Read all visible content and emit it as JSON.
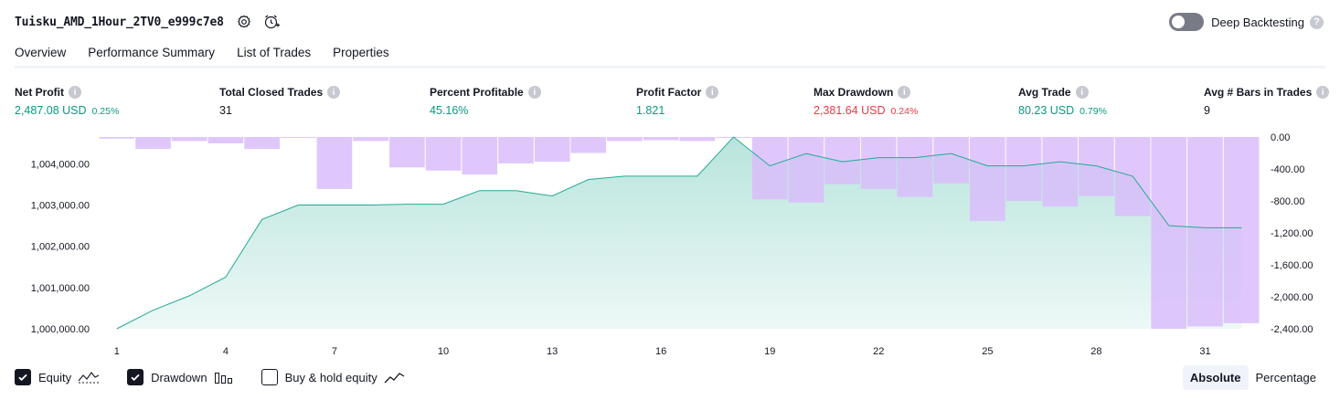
{
  "header": {
    "title": "Tuisku_AMD_1Hour_2TV0_e999c7e8",
    "deep_backtesting_label": "Deep Backtesting",
    "deep_backtesting_on": false
  },
  "tabs": [
    {
      "label": "Overview",
      "active": true
    },
    {
      "label": "Performance Summary",
      "active": false
    },
    {
      "label": "List of Trades",
      "active": false
    },
    {
      "label": "Properties",
      "active": false
    }
  ],
  "stats": {
    "net_profit": {
      "label": "Net Profit",
      "value": "2,487.08 USD",
      "pct": "0.25%"
    },
    "total_closed_trades": {
      "label": "Total Closed Trades",
      "value": "31"
    },
    "percent_profitable": {
      "label": "Percent Profitable",
      "value": "45.16%"
    },
    "profit_factor": {
      "label": "Profit Factor",
      "value": "1.821"
    },
    "max_drawdown": {
      "label": "Max Drawdown",
      "value": "2,381.64 USD",
      "pct": "0.24%"
    },
    "avg_trade": {
      "label": "Avg Trade",
      "value": "80.23 USD",
      "pct": "0.79%"
    },
    "avg_bars": {
      "label": "Avg # Bars in Trades",
      "value": "9"
    }
  },
  "colors": {
    "profit": "#089981",
    "loss": "#f23645",
    "equity_line": "#22ab94",
    "drawdown_bar": "#d9bdfa",
    "overlap": "#b9bdee"
  },
  "chart_data": {
    "type": "area",
    "x": [
      1,
      2,
      3,
      4,
      5,
      6,
      7,
      8,
      9,
      10,
      11,
      12,
      13,
      14,
      15,
      16,
      17,
      18,
      19,
      20,
      21,
      22,
      23,
      24,
      25,
      26,
      27,
      28,
      29,
      30,
      31,
      32
    ],
    "x_ticks": [
      "1",
      "4",
      "7",
      "10",
      "13",
      "16",
      "19",
      "22",
      "25",
      "28",
      "31"
    ],
    "equity": {
      "name": "Equity",
      "values": [
        1000000,
        1000450,
        1000800,
        1001250,
        1002650,
        1003000,
        1003000,
        1003000,
        1003020,
        1003020,
        1003350,
        1003350,
        1003220,
        1003620,
        1003700,
        1003700,
        1003700,
        1004650,
        1003950,
        1004250,
        1004050,
        1004150,
        1004150,
        1004250,
        1003950,
        1003950,
        1004050,
        1003950,
        1003700,
        1002500,
        1002450,
        1002450
      ]
    },
    "drawdown": {
      "name": "Drawdown",
      "values": [
        -20,
        -150,
        -50,
        -80,
        -150,
        -5,
        -650,
        -50,
        -380,
        -420,
        -470,
        -330,
        -310,
        -200,
        -50,
        -40,
        -50,
        0,
        -780,
        -820,
        -590,
        -650,
        -750,
        -580,
        -1050,
        -800,
        -870,
        -740,
        -990,
        -2400,
        -2370,
        -2330
      ]
    },
    "left_axis": {
      "ticks": [
        "1,000,000.00",
        "1,001,000.00",
        "1,002,000.00",
        "1,003,000.00",
        "1,004,000.00"
      ],
      "range": [
        1000000,
        1004650
      ]
    },
    "right_axis": {
      "ticks": [
        "0.00",
        "-400.00",
        "-800.00",
        "-1,200.00",
        "-1,600.00",
        "-2,000.00",
        "-2,400.00"
      ],
      "range": [
        -2400,
        0
      ]
    }
  },
  "legend": [
    {
      "label": "Equity",
      "checked": true,
      "icon": "equity-line-icon"
    },
    {
      "label": "Drawdown",
      "checked": true,
      "icon": "drawdown-bars-icon"
    },
    {
      "label": "Buy & hold equity",
      "checked": false,
      "icon": "buy-hold-line-icon"
    }
  ],
  "mode": {
    "absolute": "Absolute",
    "percentage": "Percentage",
    "selected": "Absolute"
  }
}
